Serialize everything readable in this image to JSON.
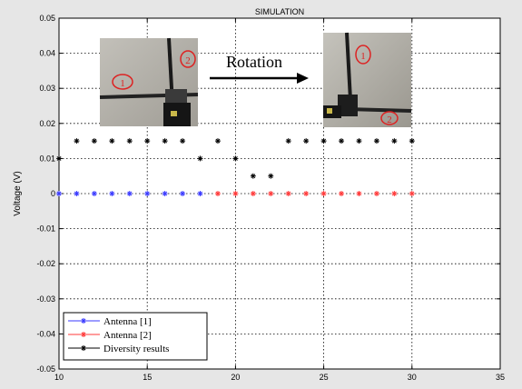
{
  "chart_data": {
    "type": "scatter",
    "title": "SIMULATION",
    "xlabel": "",
    "ylabel": "Voltage (V)",
    "xlim": [
      10,
      35
    ],
    "ylim": [
      -0.05,
      0.05
    ],
    "xticks": [
      10,
      15,
      20,
      25,
      30,
      35
    ],
    "yticks": [
      -0.05,
      -0.04,
      -0.03,
      -0.02,
      -0.01,
      0,
      0.01,
      0.02,
      0.03,
      0.04,
      0.05
    ],
    "xtick_labels": [
      "10",
      "15",
      "20",
      "25",
      "30",
      "35"
    ],
    "ytick_labels": [
      "-0.05",
      "-0.04",
      "-0.03",
      "-0.02",
      "-0.01",
      "0",
      "0.01",
      "0.02",
      "0.03",
      "0.04",
      "0.05"
    ],
    "grid": true,
    "legend_position": "bottom-left",
    "series": [
      {
        "name": "Antenna [1]",
        "color": "#3a3aff",
        "marker": "star",
        "x": [
          10,
          11,
          12,
          13,
          14,
          15,
          16,
          17,
          18
        ],
        "y": [
          0,
          0,
          0,
          0,
          0,
          0,
          0,
          0,
          0
        ]
      },
      {
        "name": "Antenna [2]",
        "color": "#ff3a3a",
        "marker": "star",
        "x": [
          19,
          20,
          21,
          22,
          23,
          24,
          25,
          26,
          27,
          28,
          29,
          30
        ],
        "y": [
          0,
          0,
          0,
          0,
          0,
          0,
          0,
          0,
          0,
          0,
          0,
          0
        ]
      },
      {
        "name": "Diversity results",
        "color": "#000000",
        "marker": "star",
        "x": [
          10,
          11,
          12,
          13,
          14,
          15,
          16,
          17,
          18,
          19,
          20,
          21,
          22,
          23,
          24,
          25,
          26,
          27,
          28,
          29,
          30
        ],
        "y": [
          0.01,
          0.015,
          0.015,
          0.015,
          0.015,
          0.015,
          0.015,
          0.015,
          0.01,
          0.015,
          0.01,
          0.005,
          0.005,
          0.015,
          0.015,
          0.015,
          0.015,
          0.015,
          0.015,
          0.015,
          0.015
        ]
      }
    ],
    "annotation": {
      "text": "Rotation",
      "arrow": "right",
      "photo_labels_before": [
        "1",
        "2"
      ],
      "photo_labels_after": [
        "1",
        "2"
      ]
    }
  }
}
